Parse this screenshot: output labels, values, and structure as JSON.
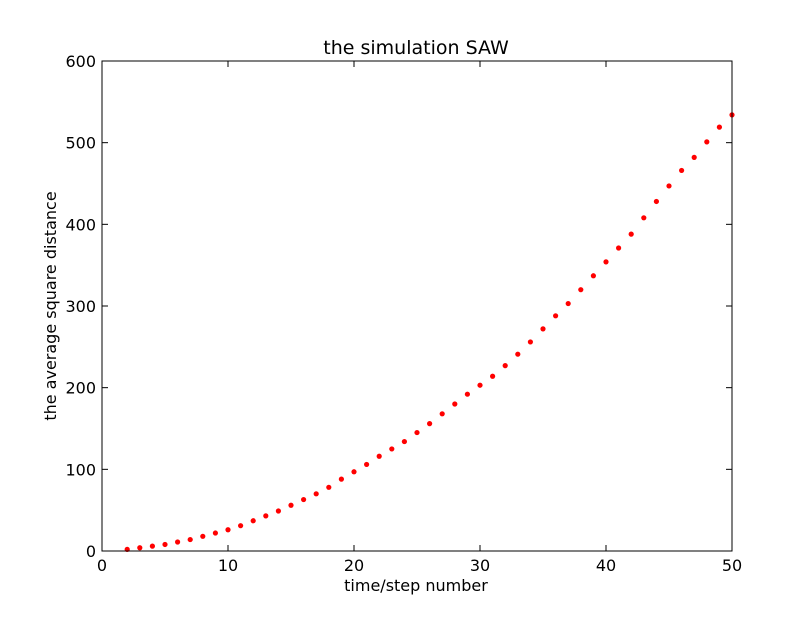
{
  "chart_data": {
    "type": "scatter",
    "title": "the simulation SAW",
    "xlabel": "time/step number",
    "ylabel": "the average square distance",
    "xlim": [
      0,
      50
    ],
    "ylim": [
      0,
      600
    ],
    "xticks": [
      0,
      10,
      20,
      30,
      40,
      50
    ],
    "yticks": [
      0,
      100,
      200,
      300,
      400,
      500,
      600
    ],
    "grid": false,
    "marker_color": "#ff0000",
    "series": [
      {
        "x": [
          2,
          3,
          4,
          5,
          6,
          7,
          8,
          9,
          10,
          11,
          12,
          13,
          14,
          15,
          16,
          17,
          18,
          19,
          20,
          21,
          22,
          23,
          24,
          25,
          26,
          27,
          28,
          29,
          30,
          31,
          32,
          33,
          34,
          35,
          36,
          37,
          38,
          39,
          40,
          41,
          42,
          43,
          44,
          45,
          46,
          47,
          48,
          49,
          50
        ],
        "y": [
          2,
          4,
          6,
          8,
          11,
          14,
          18,
          22,
          26,
          31,
          37,
          43,
          49,
          56,
          63,
          70,
          78,
          88,
          97,
          106,
          116,
          125,
          134,
          145,
          156,
          168,
          180,
          192,
          203,
          214,
          227,
          241,
          256,
          272,
          288,
          303,
          320,
          337,
          354,
          371,
          388,
          408,
          428,
          447,
          466,
          482,
          501,
          519,
          534
        ]
      }
    ]
  }
}
